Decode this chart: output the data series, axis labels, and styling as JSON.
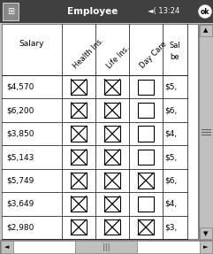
{
  "title_bar_text": "Employee",
  "title_bar_time": "13:24",
  "bg_color": "#ffffff",
  "titlebar_bg": "#404040",
  "titlebar_fg": "#ffffff",
  "content_bg": "#ffffff",
  "scrollbar_bg": "#c0c0c0",
  "outer_bg": "#c8c8c8",
  "columns_headers": [
    "Health Ins.",
    "Life Ins.",
    "Day Care"
  ],
  "salary_header": "Salary",
  "partial_header_line1": "Sal",
  "partial_header_line2": "be",
  "rows": [
    {
      "salary": "$4,570",
      "health": true,
      "life": true,
      "daycare": false,
      "partial": "$5,"
    },
    {
      "salary": "$6,200",
      "health": true,
      "life": true,
      "daycare": false,
      "partial": "$6,"
    },
    {
      "salary": "$3,850",
      "health": true,
      "life": true,
      "daycare": false,
      "partial": "$4,"
    },
    {
      "salary": "$5,143",
      "health": true,
      "life": true,
      "daycare": false,
      "partial": "$5,"
    },
    {
      "salary": "$5,749",
      "health": true,
      "life": true,
      "daycare": true,
      "partial": "$6,"
    },
    {
      "salary": "$3,649",
      "health": true,
      "life": true,
      "daycare": false,
      "partial": "$4,"
    },
    {
      "salary": "$2,980",
      "health": true,
      "life": true,
      "daycare": true,
      "partial": "$3,"
    }
  ]
}
